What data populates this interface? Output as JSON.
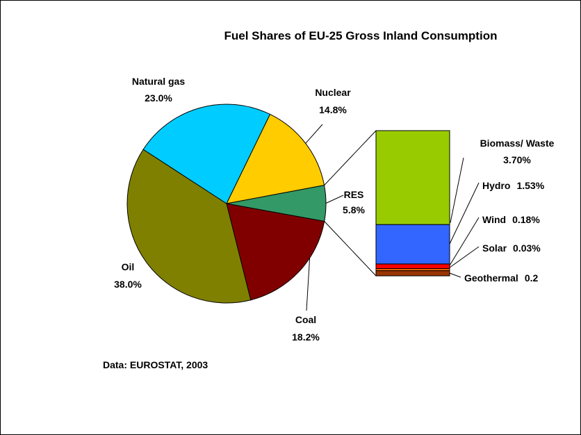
{
  "chart_data": {
    "type": "pie",
    "title": "Fuel Shares of EU-25 Gross Inland Consumption",
    "source": "Data: EUROSTAT, 2003",
    "pie": {
      "categories": [
        "Natural gas",
        "Nuclear",
        "RES",
        "Coal",
        "Oil"
      ],
      "values": [
        23.0,
        14.8,
        5.8,
        18.2,
        38.0
      ],
      "value_labels": [
        "23.0%",
        "14.8%",
        "5.8%",
        "18.2%",
        "38.0%"
      ],
      "colors": [
        "#00CCFF",
        "#FFCC00",
        "#339966",
        "#800000",
        "#808000"
      ]
    },
    "breakdown": {
      "of": "RES",
      "type": "stacked-bar",
      "categories": [
        "Biomass/ Waste",
        "Hydro",
        "Wind",
        "Solar",
        "Geothermal"
      ],
      "values": [
        3.7,
        1.53,
        0.18,
        0.03,
        0.2
      ],
      "value_labels": [
        "3.70%",
        "1.53%",
        "0.18%",
        "0.03%",
        "0.2"
      ],
      "colors": [
        "#99CC00",
        "#3366FF",
        "#FF0000",
        "#FF6600",
        "#993300"
      ]
    }
  }
}
